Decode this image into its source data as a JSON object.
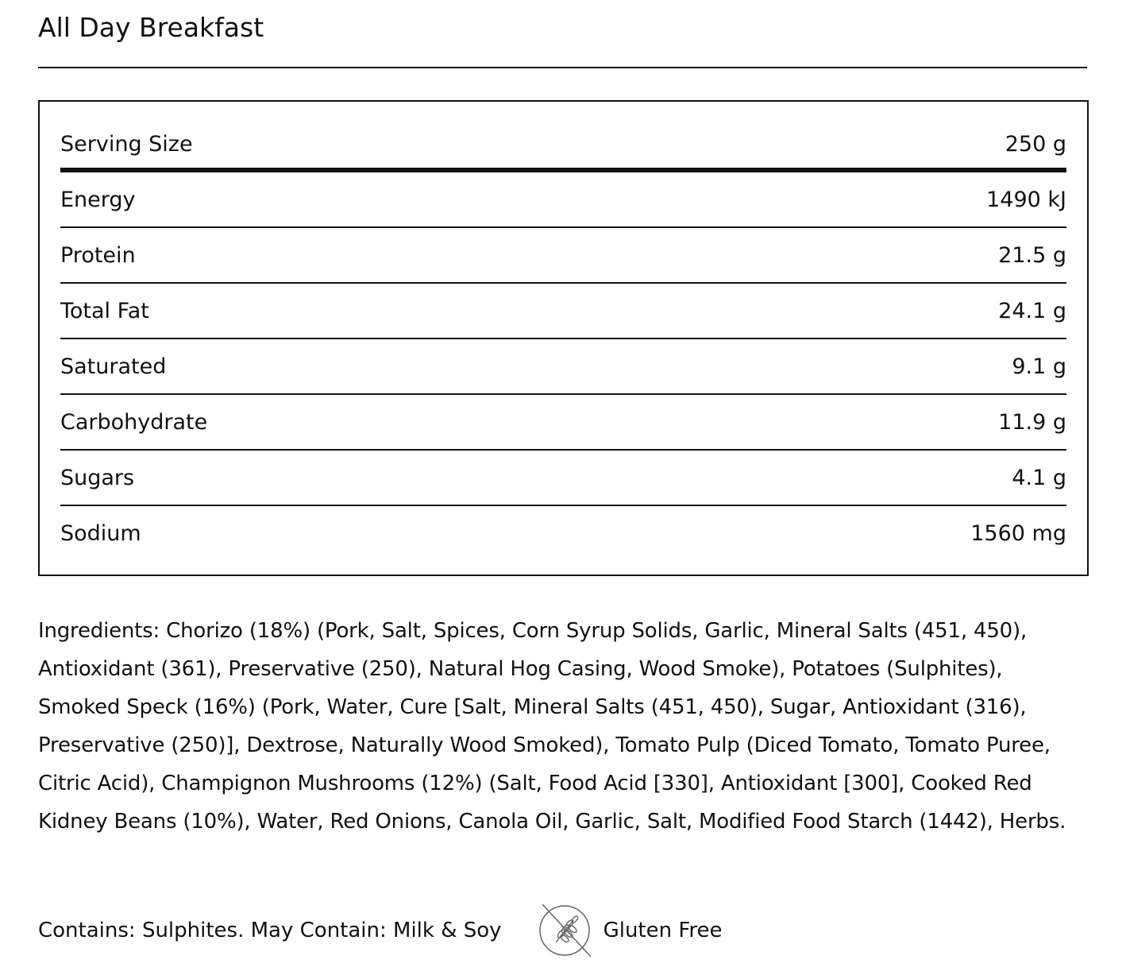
{
  "title": "All Day Breakfast",
  "serving": {
    "label": "Serving Size",
    "value": "250 g"
  },
  "nutrients": [
    {
      "label": "Energy",
      "value": "1490 kJ"
    },
    {
      "label": "Protein",
      "value": "21.5 g"
    },
    {
      "label": "Total Fat",
      "value": "24.1 g"
    },
    {
      "label": "Saturated",
      "value": "9.1 g"
    },
    {
      "label": "Carbohydrate",
      "value": "11.9 g"
    },
    {
      "label": "Sugars",
      "value": "4.1 g"
    },
    {
      "label": "Sodium",
      "value": "1560 mg"
    }
  ],
  "ingredients": {
    "label": "Ingredients:",
    "text": "Chorizo (18%) (Pork, Salt, Spices, Corn Syrup Solids, Garlic, Mineral Salts (451, 450), Antioxidant (361), Preservative (250), Natural Hog Casing, Wood Smoke), Potatoes (Sulphites), Smoked Speck (16%) (Pork, Water, Cure [Salt, Mineral Salts (451, 450), Sugar, Antioxidant (316), Preservative (250)], Dextrose, Naturally Wood Smoked), Tomato Pulp (Diced Tomato, Tomato Puree, Citric Acid), Champignon Mushrooms (12%) (Salt, Food Acid [330], Antioxidant [300], Cooked Red Kidney Beans (10%), Water, Red Onions, Canola Oil, Garlic, Salt, Modified Food Starch (1442), Herbs."
  },
  "allergens": "Contains: Sulphites. May Contain: Milk & Soy",
  "badge": {
    "icon": "gluten-free-icon",
    "label": "Gluten Free"
  }
}
